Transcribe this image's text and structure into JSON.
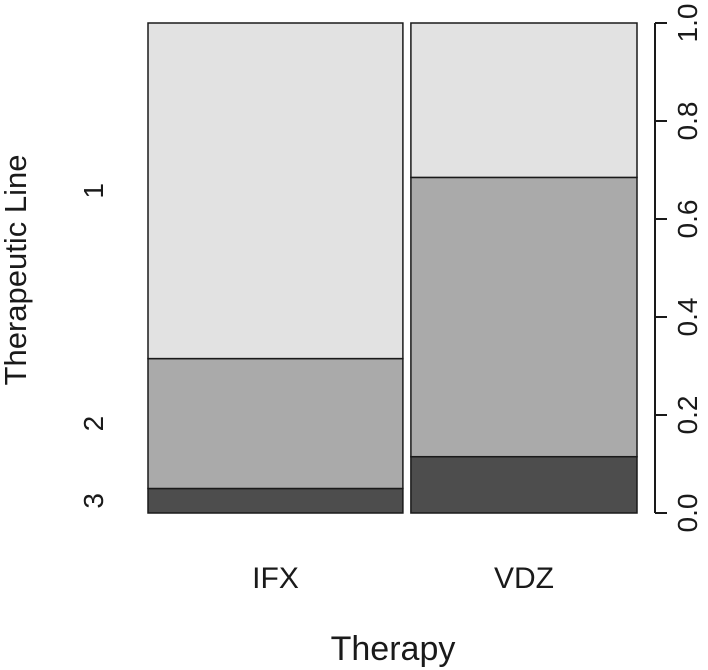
{
  "chart_data": {
    "type": "spineplot",
    "title": "",
    "xlabel": "Therapy",
    "ylabel": "Therapeutic Line",
    "categories": [
      "IFX",
      "VDZ"
    ],
    "category_widths": [
      0.53,
      0.47
    ],
    "levels": [
      "3",
      "2",
      "1"
    ],
    "series": [
      {
        "name": "3",
        "values": [
          0.05,
          0.115
        ]
      },
      {
        "name": "2",
        "values": [
          0.265,
          0.57
        ]
      },
      {
        "name": "1",
        "values": [
          0.685,
          0.315
        ]
      }
    ],
    "left_tick_labels": [
      "3",
      "2",
      "1"
    ],
    "right_ticks": [
      0.0,
      0.2,
      0.4,
      0.6,
      0.8,
      1.0
    ],
    "right_tick_labels": [
      "0.0",
      "0.2",
      "0.4",
      "0.6",
      "0.8",
      "1.0"
    ],
    "ylim": [
      0,
      1
    ],
    "colors": {
      "3": "#4d4d4d",
      "2": "#aaaaaa",
      "1": "#e2e2e2"
    },
    "grid": false,
    "legend": "none"
  }
}
